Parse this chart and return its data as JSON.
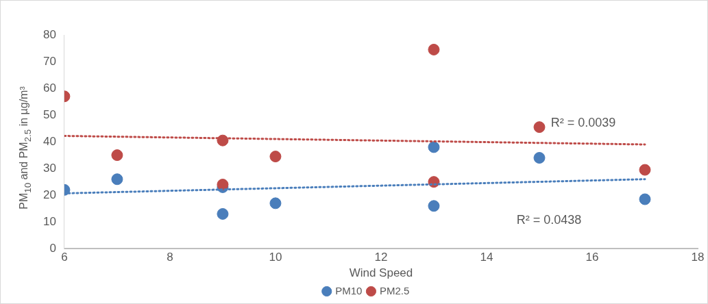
{
  "chart_data": {
    "type": "scatter",
    "xlabel": "Wind Speed",
    "ylabel": "PM$_{10}$ and PM$_{2.5}$ in µg/m³",
    "xlim": [
      6,
      18
    ],
    "xticks": [
      6,
      8,
      10,
      12,
      14,
      16,
      18
    ],
    "ylim": [
      0,
      80
    ],
    "yticks": [
      0,
      10,
      20,
      30,
      40,
      50,
      60,
      70,
      80
    ],
    "grid": false,
    "legend": "bottom",
    "marker": "circle",
    "series": [
      {
        "name": "PM10",
        "color": "#4a7ebb",
        "x": [
          6,
          7,
          9,
          9,
          10,
          13,
          13,
          15,
          17
        ],
        "values": [
          22,
          26,
          23,
          13,
          17,
          38,
          16,
          34,
          18.5
        ]
      },
      {
        "name": "PM2.5",
        "color": "#be4b48",
        "x": [
          6,
          7,
          9,
          9,
          10,
          13,
          13,
          15,
          17
        ],
        "values": [
          57,
          35,
          40.5,
          24,
          34.5,
          74.5,
          25,
          45.5,
          29.5
        ]
      },
      {
        "type": "line",
        "color": "#be4b48",
        "line_style": "dotted",
        "marker": "none",
        "x": [
          6,
          17
        ],
        "values": [
          42.2,
          39
        ]
      },
      {
        "type": "line",
        "color": "#4a7ebb",
        "line_style": "dotted",
        "marker": "none",
        "x": [
          6,
          17
        ],
        "values": [
          20.7,
          26
        ]
      }
    ],
    "annotations": [
      "R² = 0.0039",
      "R² = 0.0438"
    ]
  }
}
